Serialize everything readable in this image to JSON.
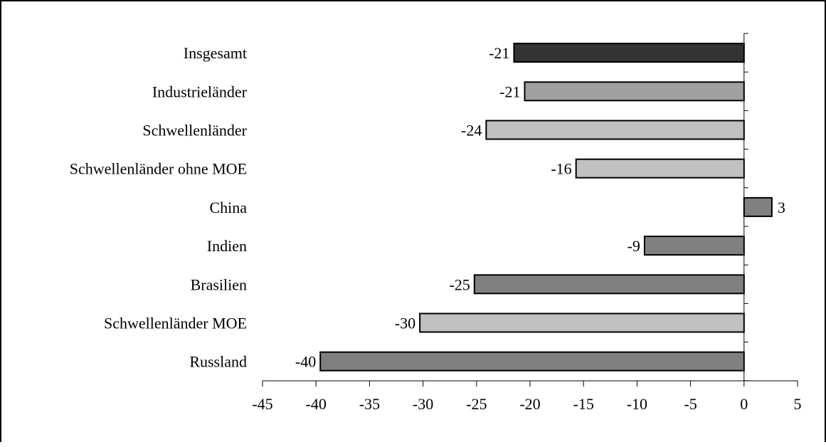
{
  "chart_data": {
    "type": "bar",
    "orientation": "horizontal",
    "title": "",
    "xlabel": "",
    "ylabel": "",
    "categories": [
      "Insgesamt",
      "Industrieländer",
      "Schwellenländer",
      "Schwellenländer ohne MOE",
      "China",
      "Indien",
      "Brasilien",
      "Schwellenländer MOE",
      "Russland"
    ],
    "values": [
      -21.5,
      -20.5,
      -24.1,
      -15.7,
      2.6,
      -9.3,
      -25.2,
      -30.3,
      -39.6
    ],
    "value_labels": [
      "-21",
      "-21",
      "-24",
      "-16",
      "3",
      "-9",
      "-25",
      "-30",
      "-40"
    ],
    "bar_colors": [
      "#333333",
      "#a0a0a0",
      "#c0c0c0",
      "#c0c0c0",
      "#808080",
      "#808080",
      "#808080",
      "#c0c0c0",
      "#808080"
    ],
    "xlim": [
      -45,
      5
    ],
    "x_ticks": [
      -45,
      -40,
      -35,
      -30,
      -25,
      -20,
      -15,
      -10,
      -5,
      0,
      5
    ],
    "x_tick_labels": [
      "-45",
      "-40",
      "-35",
      "-30",
      "-25",
      "-20",
      "-15",
      "-10",
      "-5",
      "0",
      "5"
    ],
    "grid": false,
    "legend": "none"
  }
}
